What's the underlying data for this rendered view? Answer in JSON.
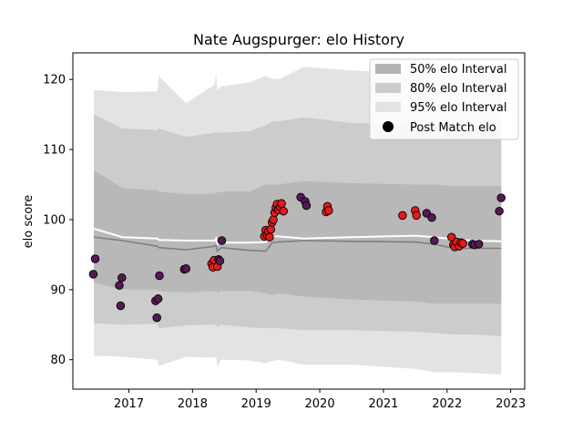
{
  "chart_data": {
    "type": "scatter",
    "title": "Nate Augspurger: elo History",
    "xlabel": "",
    "ylabel": "elo score",
    "xlim": [
      2016.12,
      2023.22
    ],
    "ylim": [
      75.8,
      123.8
    ],
    "x_ticks": [
      2017,
      2018,
      2019,
      2020,
      2021,
      2022,
      2023
    ],
    "y_ticks": [
      80,
      90,
      100,
      110,
      120
    ],
    "grid": false,
    "legend": {
      "placement": "top-right",
      "entries": [
        {
          "label": "50% elo Interval",
          "color": "#b3b3b3"
        },
        {
          "label": "80% elo Interval",
          "color": "#cccccc"
        },
        {
          "label": "95% elo Interval",
          "color": "#e3e3e3"
        },
        {
          "label": "Post Match elo",
          "color": "#000000"
        }
      ]
    },
    "colors": {
      "band_95": "#e3e3e3",
      "band_80": "#cccccc",
      "band_50": "#b8b8b8",
      "median_line": "#7f7f7f",
      "mean_line": "#ffffff",
      "point_purple": "#551a55",
      "point_red": "#e41a1c",
      "point_edge": "#000000"
    },
    "bands": {
      "x": [
        2016.45,
        2016.9,
        2017.45,
        2017.47,
        2017.9,
        2018.35,
        2018.37,
        2018.39,
        2018.45,
        2018.9,
        2019.15,
        2019.25,
        2019.35,
        2019.75,
        2020.5,
        2021.5,
        2021.8,
        2022.1,
        2022.4,
        2022.85
      ],
      "ci95_upper": [
        118.5,
        118.2,
        118.3,
        120.5,
        116.6,
        119.3,
        121.0,
        118.5,
        119.0,
        119.6,
        120.5,
        120.1,
        120.0,
        121.8,
        121.3,
        120.9,
        121.2,
        120.6,
        120.7,
        120.8
      ],
      "ci95_lower": [
        80.6,
        80.4,
        80.0,
        79.1,
        80.4,
        80.3,
        80.5,
        79.0,
        80.0,
        79.9,
        79.5,
        79.8,
        80.0,
        79.3,
        79.3,
        78.7,
        78.2,
        78.2,
        78.1,
        77.9
      ],
      "ci80_upper": [
        115.0,
        113.0,
        112.8,
        113.0,
        111.8,
        112.4,
        112.6,
        112.4,
        112.4,
        112.6,
        113.5,
        114.0,
        114.0,
        114.6,
        113.8,
        113.6,
        113.5,
        113.4,
        113.5,
        113.3
      ],
      "ci80_lower": [
        85.2,
        85.0,
        85.1,
        84.5,
        84.9,
        85.0,
        85.2,
        84.6,
        85.0,
        84.6,
        84.5,
        84.5,
        84.5,
        84.2,
        84.2,
        84.0,
        83.8,
        83.6,
        83.6,
        83.4
      ],
      "ci50_upper": [
        107.0,
        104.5,
        104.2,
        104.0,
        103.6,
        103.7,
        104.0,
        103.8,
        104.0,
        104.0,
        105.0,
        105.0,
        105.0,
        105.5,
        105.2,
        105.0,
        105.0,
        104.8,
        104.8,
        104.8
      ],
      "ci50_lower": [
        91.0,
        90.0,
        90.0,
        89.8,
        89.6,
        89.8,
        90.0,
        89.5,
        89.8,
        89.8,
        89.5,
        89.3,
        89.5,
        89.0,
        88.6,
        88.3,
        88.0,
        88.0,
        88.0,
        88.0
      ],
      "median": [
        97.5,
        97.0,
        96.2,
        96.0,
        95.7,
        96.2,
        96.4,
        95.5,
        96.0,
        95.6,
        95.5,
        96.7,
        96.8,
        97.0,
        96.9,
        96.8,
        96.5,
        95.9,
        95.9,
        95.9
      ],
      "mean": [
        98.7,
        97.5,
        97.3,
        97.1,
        97.0,
        97.0,
        97.3,
        96.5,
        96.7,
        96.7,
        96.8,
        97.6,
        97.6,
        97.3,
        97.5,
        97.7,
        97.5,
        97.2,
        97.0,
        96.9
      ]
    },
    "points": [
      {
        "x": 2016.44,
        "y": 92.2,
        "c": "purple"
      },
      {
        "x": 2016.47,
        "y": 94.4,
        "c": "purple"
      },
      {
        "x": 2016.85,
        "y": 90.6,
        "c": "purple"
      },
      {
        "x": 2016.87,
        "y": 87.7,
        "c": "purple"
      },
      {
        "x": 2016.89,
        "y": 91.7,
        "c": "purple"
      },
      {
        "x": 2017.42,
        "y": 88.4,
        "c": "purple"
      },
      {
        "x": 2017.44,
        "y": 86.0,
        "c": "purple"
      },
      {
        "x": 2017.46,
        "y": 88.7,
        "c": "purple"
      },
      {
        "x": 2017.48,
        "y": 92.0,
        "c": "purple"
      },
      {
        "x": 2017.87,
        "y": 92.9,
        "c": "purple"
      },
      {
        "x": 2017.9,
        "y": 93.0,
        "c": "purple"
      },
      {
        "x": 2018.3,
        "y": 93.7,
        "c": "red"
      },
      {
        "x": 2018.32,
        "y": 93.2,
        "c": "red"
      },
      {
        "x": 2018.34,
        "y": 94.2,
        "c": "red"
      },
      {
        "x": 2018.39,
        "y": 93.3,
        "c": "red"
      },
      {
        "x": 2018.41,
        "y": 94.3,
        "c": "purple"
      },
      {
        "x": 2018.43,
        "y": 94.1,
        "c": "purple"
      },
      {
        "x": 2018.46,
        "y": 97.0,
        "c": "purple"
      },
      {
        "x": 2019.13,
        "y": 97.6,
        "c": "red"
      },
      {
        "x": 2019.15,
        "y": 98.5,
        "c": "red"
      },
      {
        "x": 2019.17,
        "y": 97.8,
        "c": "red"
      },
      {
        "x": 2019.19,
        "y": 98.3,
        "c": "red"
      },
      {
        "x": 2019.21,
        "y": 97.5,
        "c": "red"
      },
      {
        "x": 2019.23,
        "y": 98.6,
        "c": "red"
      },
      {
        "x": 2019.25,
        "y": 99.6,
        "c": "red"
      },
      {
        "x": 2019.27,
        "y": 100.0,
        "c": "red"
      },
      {
        "x": 2019.29,
        "y": 101.0,
        "c": "red"
      },
      {
        "x": 2019.31,
        "y": 101.7,
        "c": "red"
      },
      {
        "x": 2019.33,
        "y": 102.2,
        "c": "red"
      },
      {
        "x": 2019.35,
        "y": 101.4,
        "c": "red"
      },
      {
        "x": 2019.38,
        "y": 101.8,
        "c": "red"
      },
      {
        "x": 2019.4,
        "y": 102.3,
        "c": "red"
      },
      {
        "x": 2019.43,
        "y": 101.2,
        "c": "red"
      },
      {
        "x": 2019.7,
        "y": 103.2,
        "c": "purple"
      },
      {
        "x": 2019.77,
        "y": 102.6,
        "c": "purple"
      },
      {
        "x": 2019.79,
        "y": 102.0,
        "c": "purple"
      },
      {
        "x": 2020.1,
        "y": 101.1,
        "c": "red"
      },
      {
        "x": 2020.12,
        "y": 101.9,
        "c": "red"
      },
      {
        "x": 2020.14,
        "y": 101.3,
        "c": "red"
      },
      {
        "x": 2021.3,
        "y": 100.6,
        "c": "red"
      },
      {
        "x": 2021.5,
        "y": 101.3,
        "c": "red"
      },
      {
        "x": 2021.52,
        "y": 100.6,
        "c": "red"
      },
      {
        "x": 2021.68,
        "y": 100.9,
        "c": "purple"
      },
      {
        "x": 2021.76,
        "y": 100.3,
        "c": "purple"
      },
      {
        "x": 2021.8,
        "y": 97.0,
        "c": "purple"
      },
      {
        "x": 2022.07,
        "y": 97.5,
        "c": "red"
      },
      {
        "x": 2022.1,
        "y": 96.4,
        "c": "red"
      },
      {
        "x": 2022.12,
        "y": 96.1,
        "c": "red"
      },
      {
        "x": 2022.15,
        "y": 96.8,
        "c": "red"
      },
      {
        "x": 2022.19,
        "y": 96.2,
        "c": "red"
      },
      {
        "x": 2022.22,
        "y": 96.7,
        "c": "red"
      },
      {
        "x": 2022.25,
        "y": 96.6,
        "c": "red"
      },
      {
        "x": 2022.4,
        "y": 96.5,
        "c": "purple"
      },
      {
        "x": 2022.43,
        "y": 96.4,
        "c": "purple"
      },
      {
        "x": 2022.5,
        "y": 96.5,
        "c": "purple"
      },
      {
        "x": 2022.82,
        "y": 101.2,
        "c": "purple"
      },
      {
        "x": 2022.85,
        "y": 103.1,
        "c": "purple"
      }
    ]
  }
}
